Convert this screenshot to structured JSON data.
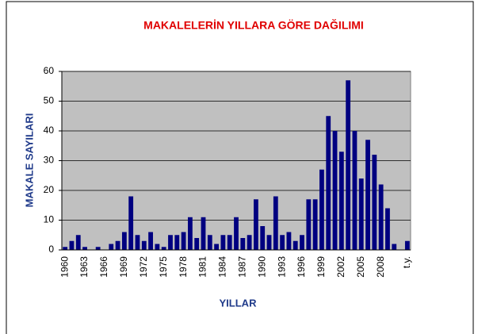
{
  "chart_data": {
    "type": "bar",
    "title": "MAKALELERİN YILLARA GÖRE DAĞILIMI",
    "x_label": "YILLAR",
    "y_label": "MAKALE SAYILARI",
    "categories": [
      "1960",
      null,
      null,
      "1963",
      null,
      null,
      "1966",
      null,
      null,
      "1969",
      null,
      null,
      "1972",
      null,
      null,
      "1975",
      null,
      null,
      "1978",
      null,
      null,
      "1981",
      null,
      null,
      "1984",
      null,
      null,
      "1987",
      null,
      null,
      "1990",
      null,
      null,
      "1993",
      null,
      null,
      "1996",
      null,
      null,
      "1999",
      null,
      null,
      "2002",
      null,
      null,
      "2005",
      null,
      null,
      "2008",
      null,
      null,
      null,
      "t.y."
    ],
    "values": [
      1,
      3,
      5,
      1,
      0,
      1,
      0,
      2,
      3,
      6,
      18,
      5,
      3,
      6,
      2,
      1,
      5,
      5,
      6,
      11,
      4,
      11,
      5,
      2,
      5,
      5,
      11,
      4,
      5,
      17,
      8,
      5,
      18,
      5,
      6,
      3,
      5,
      17,
      17,
      27,
      45,
      40,
      33,
      57,
      40,
      24,
      37,
      32,
      22,
      14,
      2,
      0,
      3
    ],
    "color": "#000080",
    "ylim": [
      0,
      60
    ],
    "yticks": [
      0,
      10,
      20,
      30,
      40,
      50,
      60
    ],
    "grid": true
  }
}
